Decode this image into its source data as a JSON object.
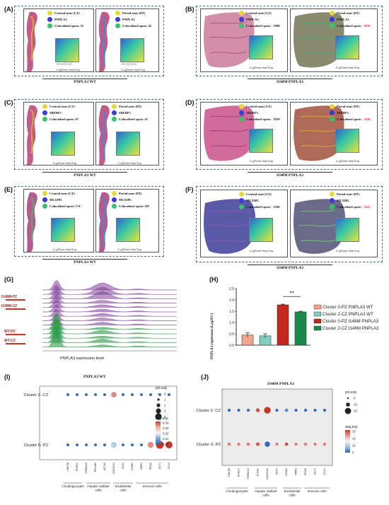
{
  "panels": {
    "A": {
      "label": "(A)",
      "left": {
        "zone": "Central zone (CZ)",
        "gene": "PNPLA3",
        "coloc": "Colocalized spots: 52"
      },
      "right": {
        "zone": "Portal zone (PZ)",
        "gene": "PNPLA3",
        "coloc": "Colocalized spots: 45"
      },
      "footer": "PNPLA3 WT"
    },
    "B": {
      "label": "(B)",
      "left": {
        "zone": "Central zone (CZ)",
        "gene": "PNPLA3",
        "coloc_prefix": "Colocalized spots: ",
        "coloc_num": "1908"
      },
      "right": {
        "zone": "Portal zone (PZ)",
        "gene": "PNPLA3",
        "coloc_prefix": "Colocalized spots: ",
        "coloc_num": "2876"
      },
      "footer": "I148M PNPLA3"
    },
    "C": {
      "label": "(C)",
      "left": {
        "zone": "Central zone (CZ)",
        "gene": "SREBF1",
        "coloc": "Colocalized spots: 67"
      },
      "right": {
        "zone": "Portal zone (PZ)",
        "gene": "SREBF1",
        "coloc": "Colocalized spots: 61"
      },
      "footer": "PNPLA3 WT"
    },
    "D": {
      "label": "(D)",
      "left": {
        "zone": "Central zone (CZ)",
        "gene": "SREBF1",
        "coloc_prefix": "Colocalized spots: ",
        "coloc_num": "1818"
      },
      "right": {
        "zone": "Portal zone (PZ)",
        "gene": "SREBF1",
        "coloc_prefix": "Colocalized spots: ",
        "coloc_num": "2430"
      },
      "footer": "I148M PNPLA3"
    },
    "E": {
      "label": "(E)",
      "left": {
        "zone": "Central zone (CZ)",
        "gene": "MLXIPL",
        "coloc": "Colocalized spots: 174"
      },
      "right": {
        "zone": "Portal zone (PZ)",
        "gene": "MLXIPL",
        "coloc": "Colocalized spots: 187"
      },
      "footer": "PNPLA3 WT"
    },
    "F": {
      "label": "(F)",
      "left": {
        "zone": "Central zone (CZ)",
        "gene": "MLXIPL",
        "coloc_prefix": "Colocalized spots: ",
        "coloc_num": "2106"
      },
      "right": {
        "zone": "Portal zone (PZ)",
        "gene": "MLXIPL",
        "coloc_prefix": "Colocalized spots: ",
        "coloc_num": "3325"
      },
      "footer": "I148M PNPLA3"
    },
    "G": {
      "label": "(G)",
      "xlabel": "PNPLA3 expression level",
      "groups": [
        "I148M-PZ",
        "I148M-CZ",
        "WT-PZ",
        "WT-CZ"
      ]
    },
    "H": {
      "label": "(H)",
      "sig": "**"
    },
    "I": {
      "label": "(I)",
      "title": "PNPLA3 WT",
      "rows": [
        "Cluster 2- CZ",
        "Cluster 0- PZ"
      ]
    },
    "J": {
      "label": "(J)",
      "title": "I148M PNPLA3",
      "rows": [
        "Cluster 2- CZ",
        "Cluster 0- PZ"
      ]
    }
  },
  "gradient_axis": {
    "ticks": [
      "0.5",
      "1.0",
      "1.5",
      "2.0"
    ],
    "yticks": [
      "2.0",
      "1.5",
      "1.0",
      "0.5"
    ],
    "caption": "LogNorm Sum Exp"
  },
  "colors": {
    "coloc_highlight": "#d7261e",
    "dot_yellow": "#e6d83a",
    "dot_blue": "#3a3adb",
    "dot_green": "#36c36a"
  },
  "chart_data": [
    {
      "type": "bar",
      "panel": "H",
      "ylabel": "PNPLA3 expression (Log2FC)",
      "ylim": [
        0,
        2.5
      ],
      "yticks": [
        "0.0",
        "0.5",
        "1.0",
        "1.5",
        "2.0",
        "2.5"
      ],
      "series": [
        {
          "name": "Cluster 0-PZ PNPLA3 WT",
          "color": "#f2a58e",
          "value": 0.45,
          "err": 0.09
        },
        {
          "name": "Cluster 2-CZ PNPLA3 WT",
          "color": "#7fcfbf",
          "value": 0.41,
          "err": 0.09
        },
        {
          "name": "Cluster 0-PZ I148M PNPLA3",
          "color": "#c2261c",
          "value": 1.78,
          "err": 0.03
        },
        {
          "name": "Cluster 2-CZ I148M PNPLA3",
          "color": "#1a8a4a",
          "value": 1.47,
          "err": 0.03
        }
      ]
    },
    {
      "type": "scatter",
      "panel": "I",
      "categories": [
        "HNF1B",
        "PKHD1",
        "TSPAN13",
        "PDLIM3",
        "ACTA2",
        "COLEC11",
        "CD34",
        "STAB1",
        "TIMP3",
        "SP110",
        "CD74",
        "CCL1"
      ],
      "group_labels": [
        "Cholangiocytes",
        "Hepatic stellate cells",
        "Endothelial cells",
        "Immune cells"
      ],
      "legend_pct_title": "pct.exp",
      "legend_pct": [
        "0",
        "1",
        "2",
        "3",
        "4"
      ],
      "legend_avg_title": "avg.exp",
      "legend_avg": [
        "0.04",
        "0.03",
        "0.02",
        "0.01",
        "0.00"
      ],
      "rows": [
        {
          "name": "Cluster 2- CZ",
          "size": [
            0.5,
            0.5,
            0.5,
            0.5,
            0.5,
            1.6,
            0.5,
            0.5,
            0.5,
            0.5,
            0.5,
            0.5
          ],
          "color": [
            0.0,
            0.0,
            0.0,
            0.0,
            0.0,
            0.02,
            0.0,
            0.0,
            0.0,
            0.0,
            0.0,
            0.0
          ]
        },
        {
          "name": "Cluster 0- PZ",
          "size": [
            0.5,
            0.5,
            0.5,
            0.5,
            0.5,
            1.8,
            0.5,
            0.5,
            0.5,
            1.8,
            2.5,
            2.2
          ],
          "color": [
            0.0,
            0.0,
            0.0,
            0.0,
            0.0,
            0.01,
            0.0,
            0.0,
            0.0,
            0.02,
            0.04,
            0.035
          ]
        }
      ]
    },
    {
      "type": "scatter",
      "panel": "J",
      "categories": [
        "HNF1B",
        "PKHD1",
        "TSPAN13",
        "ACTA2",
        "COLEC11",
        "CD34",
        "STAB1",
        "TIMP3",
        "SP110",
        "CD74",
        "CCL1"
      ],
      "group_labels": [
        "Cholangiocytes",
        "Hepatic stellate cells",
        "Endothelial cells",
        "Immune cells"
      ],
      "legend_pct_title": "pct.exp",
      "legend_pct": [
        "5",
        "10",
        "20"
      ],
      "legend_avg_title": "avg.exp",
      "legend_avg": [
        "20",
        "15",
        "10",
        "5"
      ],
      "rows": [
        {
          "name": "Cluster 2- CZ",
          "size": [
            1.0,
            1.0,
            1.0,
            1.6,
            3.6,
            1.0,
            1.3,
            1.0,
            1.0,
            1.0,
            1.0
          ],
          "color": [
            3,
            3,
            3,
            14,
            20,
            3,
            6,
            3,
            3,
            3,
            3
          ]
        },
        {
          "name": "Cluster 0- PZ",
          "size": [
            1.2,
            1.1,
            1.2,
            1.4,
            2.6,
            1.0,
            1.2,
            1.1,
            1.1,
            1.1,
            1.1
          ],
          "color": [
            10,
            10,
            10,
            12,
            4,
            10,
            12,
            10,
            11,
            11,
            10
          ]
        }
      ]
    }
  ]
}
